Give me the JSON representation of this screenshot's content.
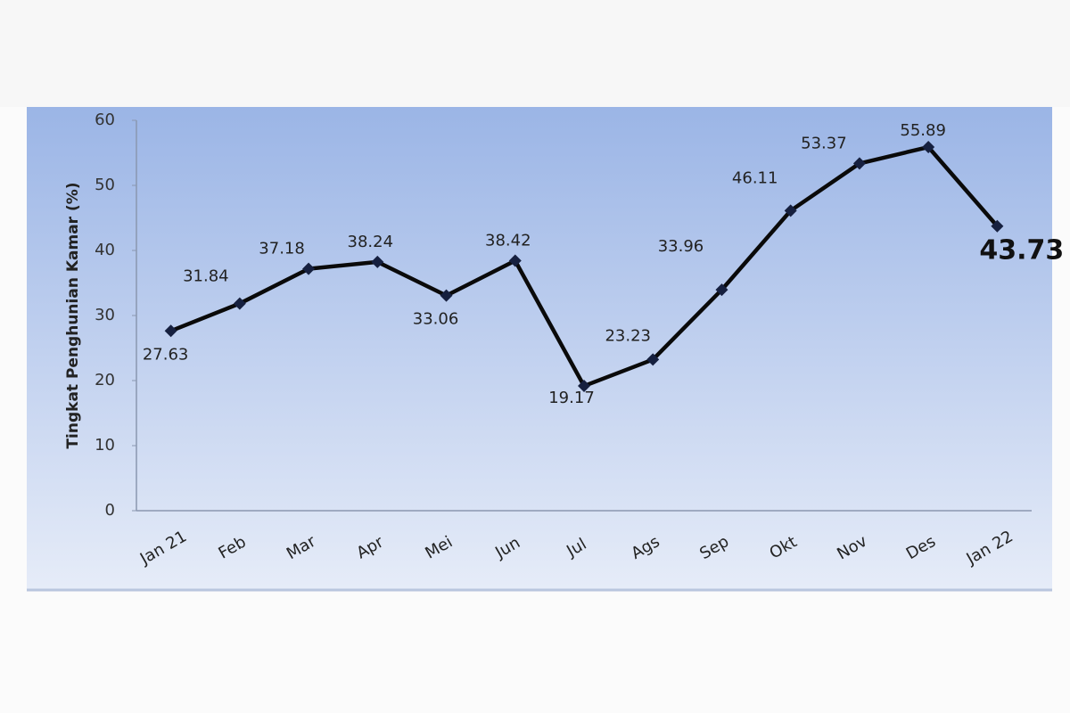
{
  "chart_data": {
    "type": "line",
    "y_label": "Tingkat Penghunian Kamar (%)",
    "categories": [
      "Jan 21",
      "Feb",
      "Mar",
      "Apr",
      "Mei",
      "Jun",
      "Jul",
      "Ags",
      "Sep",
      "Okt",
      "Nov",
      "Des",
      "Jan 22"
    ],
    "values": [
      27.63,
      31.84,
      37.18,
      38.24,
      33.06,
      38.42,
      19.17,
      23.23,
      33.96,
      46.11,
      53.37,
      55.89,
      43.73
    ],
    "color": "#0a0a0a",
    "marker_color": "#16203f",
    "ylim": [
      0,
      60
    ],
    "yticks": [
      0,
      10,
      20,
      30,
      40,
      50,
      60
    ]
  }
}
